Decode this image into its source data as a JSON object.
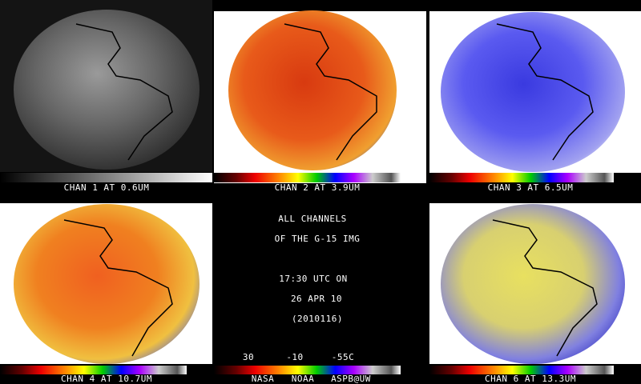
{
  "panels": [
    {
      "caption": "CHAN 1 AT 0.6UM"
    },
    {
      "caption": "CHAN 2 AT 3.9UM"
    },
    {
      "caption": "CHAN 3 AT 6.5UM"
    },
    {
      "caption": "CHAN 4 AT 10.7UM"
    },
    {
      "caption": "CHAN 6 AT 13.3UM"
    }
  ],
  "center_text": {
    "lines": [
      "ALL CHANNELS",
      "OF THE G-15 IMG",
      "17:30 UTC ON",
      "26 APR 10",
      "(2010116)"
    ]
  },
  "scale": {
    "labels": [
      "30",
      "-10",
      "-55C"
    ]
  },
  "credits": [
    "NASA",
    "NOAA",
    "ASPB@UW"
  ]
}
